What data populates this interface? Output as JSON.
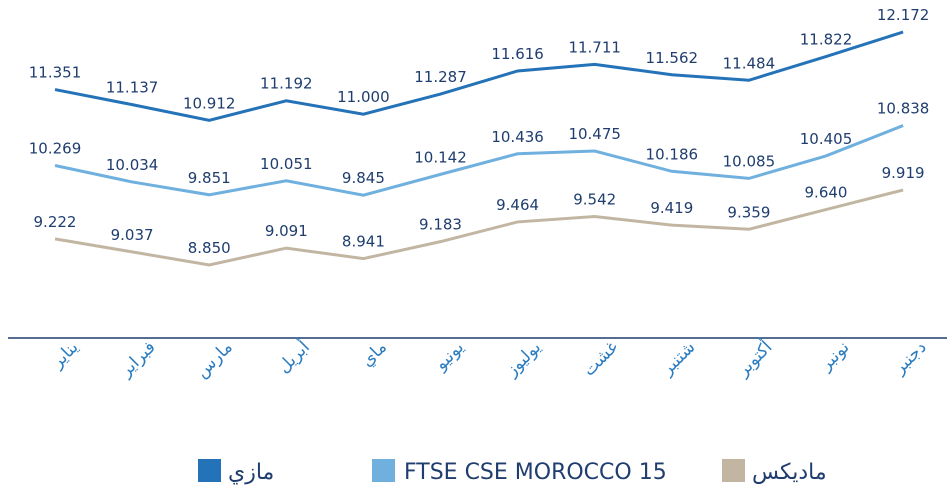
{
  "chart_data": {
    "type": "line",
    "categories": [
      "يناير",
      "فبراير",
      "مارس",
      "أبريل",
      "ماي",
      "يونيو",
      "يوليوز",
      "غشت",
      "شتنبر",
      "أكتوبر",
      "نونبر",
      "دجنبر"
    ],
    "series": [
      {
        "name": "مازي",
        "color": "#2472b8",
        "values": [
          11.351,
          11.137,
          10.912,
          11.192,
          11.0,
          11.287,
          11.616,
          11.711,
          11.562,
          11.484,
          11.822,
          12.172
        ],
        "value_labels": [
          "11.351",
          "11.137",
          "10.912",
          "11.192",
          "11.000",
          "11.287",
          "11.616",
          "11.711",
          "11.562",
          "11.484",
          "11.822",
          "12.172"
        ]
      },
      {
        "name": "FTSE CSE MOROCCO 15",
        "color": "#6fb0df",
        "values": [
          10.269,
          10.034,
          9.851,
          10.051,
          9.845,
          10.142,
          10.436,
          10.475,
          10.186,
          10.085,
          10.405,
          10.838
        ],
        "value_labels": [
          "10.269",
          "10.034",
          "9.851",
          "10.051",
          "9.845",
          "10.142",
          "10.436",
          "10.475",
          "10.186",
          "10.085",
          "10.405",
          "10.838"
        ]
      },
      {
        "name": "ماديكس",
        "color": "#c2b6a3",
        "values": [
          9.222,
          9.037,
          8.85,
          9.091,
          8.941,
          9.183,
          9.464,
          9.542,
          9.419,
          9.359,
          9.64,
          9.919
        ],
        "value_labels": [
          "9.222",
          "9.037",
          "8.850",
          "9.091",
          "8.941",
          "9.183",
          "9.464",
          "9.542",
          "9.419",
          "9.359",
          "9.640",
          "9.919"
        ]
      }
    ]
  }
}
